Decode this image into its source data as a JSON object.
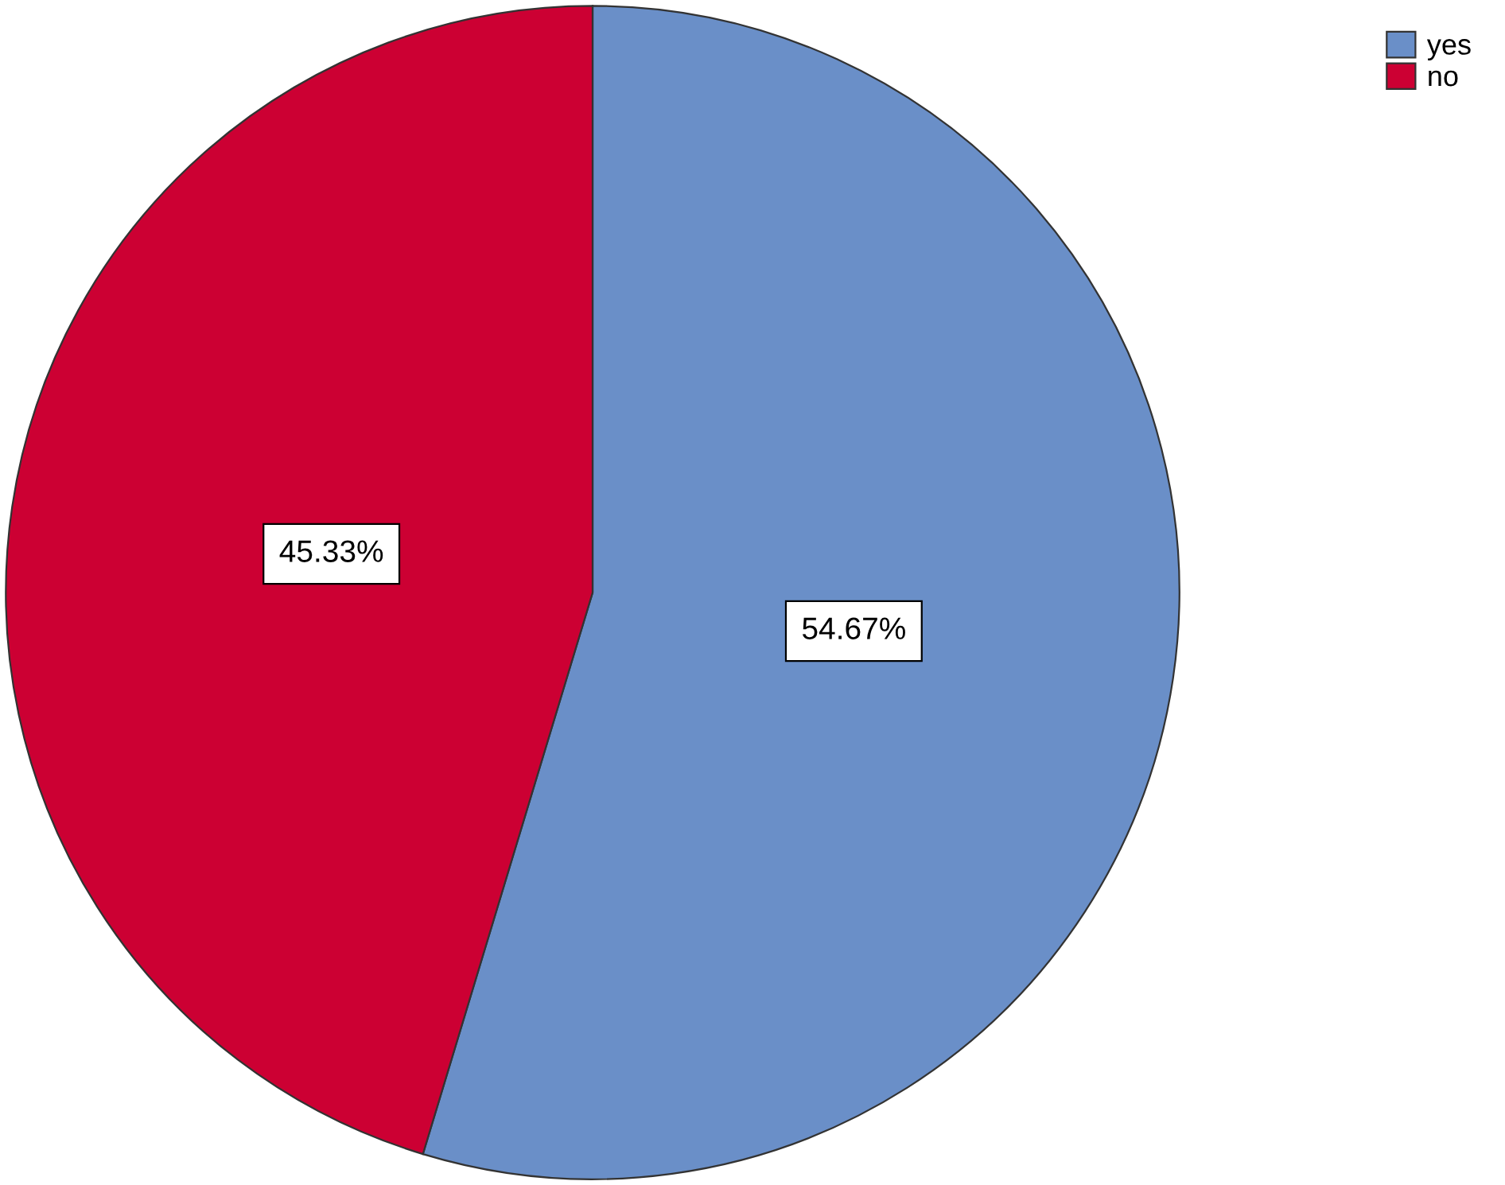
{
  "chart_data": {
    "type": "pie",
    "categories": [
      "yes",
      "no"
    ],
    "values": [
      54.67,
      45.33
    ],
    "colors": [
      "#6a8fc8",
      "#cc0033"
    ],
    "value_labels": [
      "54.67%",
      "45.33%"
    ],
    "legend": "top right"
  }
}
